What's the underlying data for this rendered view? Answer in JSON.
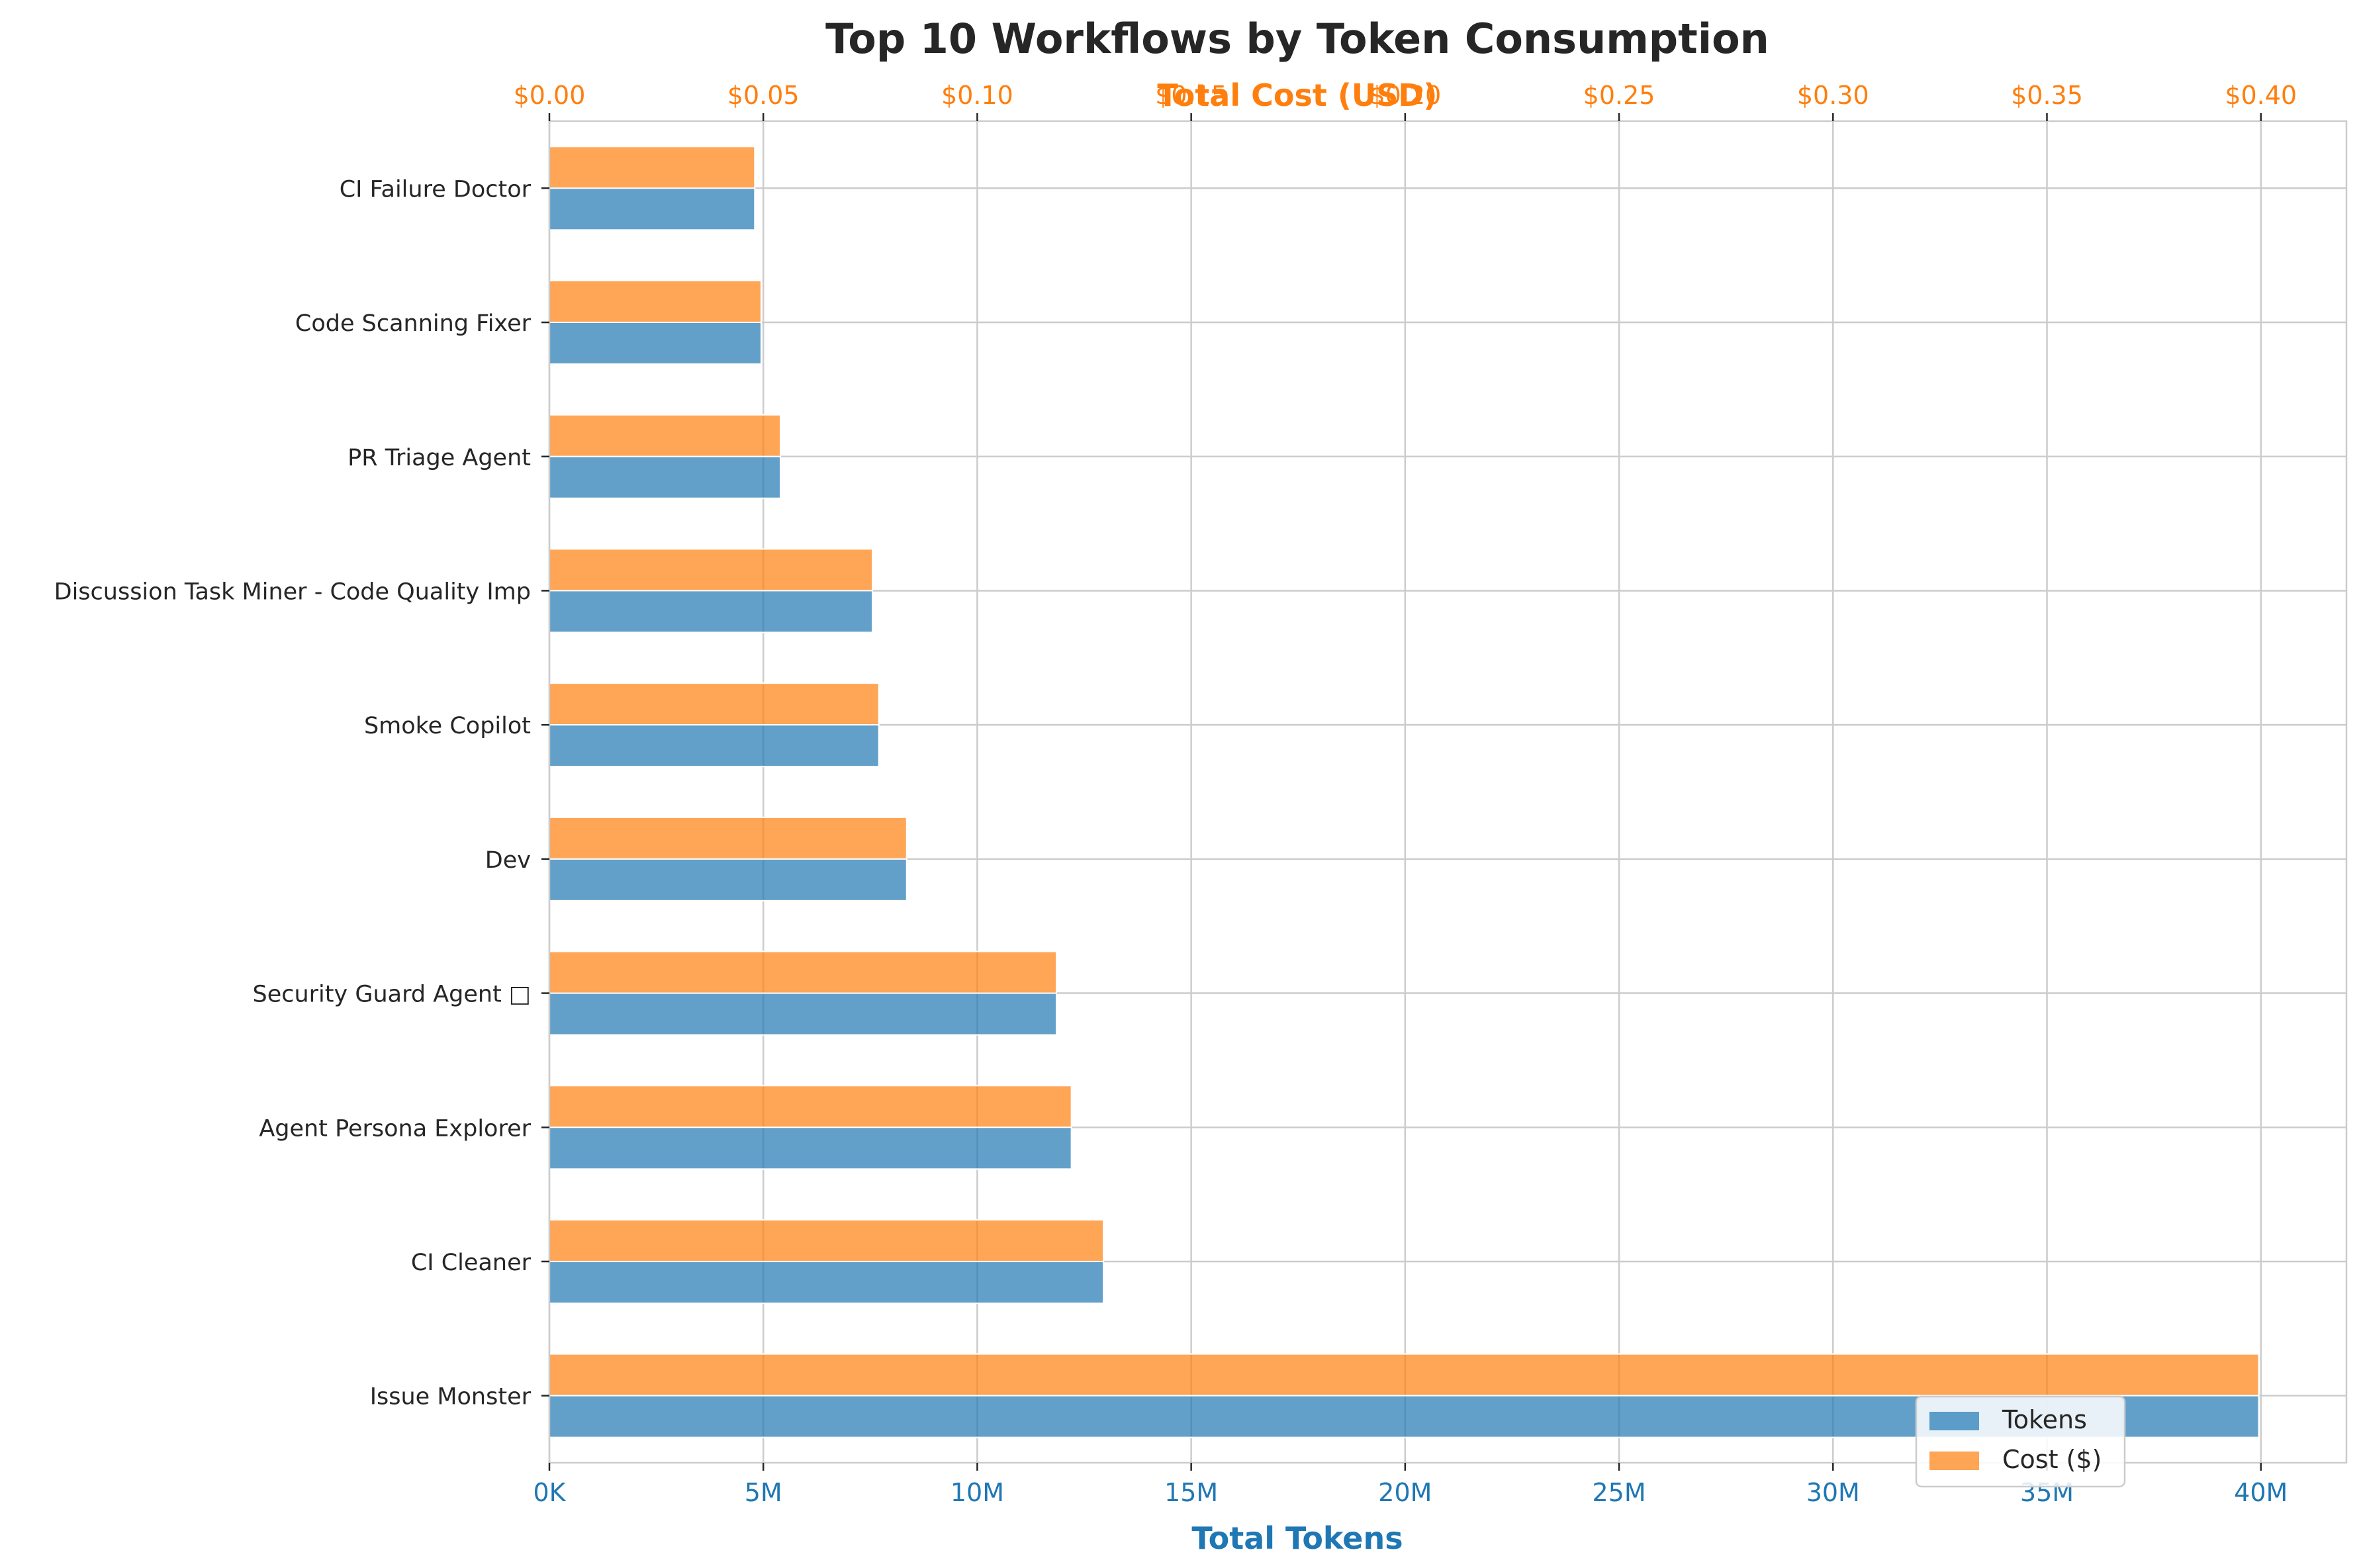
{
  "chart_data": {
    "type": "bar",
    "orientation": "horizontal",
    "title": "Top 10 Workflows by Token Consumption",
    "xlabel": "Total Tokens",
    "x2label": "Total Cost (USD)",
    "ylabel": "",
    "categories": [
      "CI Failure Doctor",
      "Code Scanning Fixer",
      "PR Triage Agent",
      "Discussion Task Miner - Code Quality Imp",
      "Smoke Copilot",
      "Dev",
      "Security Guard Agent □",
      "Agent Persona Explorer",
      "CI Cleaner",
      "Issue Monster"
    ],
    "series": [
      {
        "name": "Tokens",
        "color": "#1f77b4",
        "axis": "bottom",
        "values": [
          4800000,
          4950000,
          5400000,
          7550000,
          7700000,
          8350000,
          11850000,
          12200000,
          12950000,
          39950000
        ]
      },
      {
        "name": "Cost ($)",
        "color": "#ff7f0e",
        "axis": "top",
        "values": [
          0.048,
          0.0495,
          0.054,
          0.0755,
          0.077,
          0.0835,
          0.1185,
          0.122,
          0.1295,
          0.3995
        ]
      }
    ],
    "xlim": [
      0,
      42000000
    ],
    "x2lim": [
      0,
      0.42
    ],
    "xticks": [
      0,
      5000000,
      10000000,
      15000000,
      20000000,
      25000000,
      30000000,
      35000000,
      40000000
    ],
    "xtick_labels": [
      "0K",
      "5M",
      "10M",
      "15M",
      "20M",
      "25M",
      "30M",
      "35M",
      "40M"
    ],
    "x2ticks": [
      0,
      0.05,
      0.1,
      0.15,
      0.2,
      0.25,
      0.3,
      0.35,
      0.4
    ],
    "x2tick_labels": [
      "$0.00",
      "$0.05",
      "$0.10",
      "$0.15",
      "$0.20",
      "$0.25",
      "$0.30",
      "$0.35",
      "$0.40"
    ],
    "grid": true,
    "legend": {
      "placement": "bottom-right",
      "entries": [
        "Tokens",
        "Cost ($)"
      ]
    },
    "colors": {
      "tokens": "#1f77b4",
      "cost": "#ff7f0e",
      "grid": "#cccccc",
      "title": "#262626"
    }
  }
}
